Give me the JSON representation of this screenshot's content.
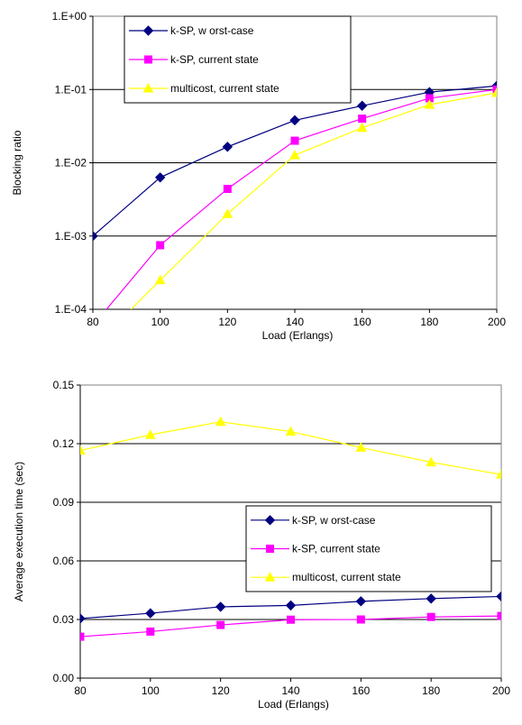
{
  "chart_data": [
    {
      "type": "line",
      "yscale": "log",
      "x": [
        80,
        100,
        120,
        140,
        160,
        180,
        200
      ],
      "xlim": [
        80,
        200
      ],
      "ylim": [
        0.0001,
        1
      ],
      "x_tick_values": [
        80,
        100,
        120,
        140,
        160,
        180,
        200
      ],
      "x_tick_labels": [
        "80",
        "100",
        "120",
        "140",
        "160",
        "180",
        "200"
      ],
      "y_tick_values": [
        0.0001,
        0.001,
        0.01,
        0.1,
        1
      ],
      "y_tick_labels": [
        "1.E-04",
        "1.E-03",
        "1.E-02",
        "1.E-01",
        "1.E+00"
      ],
      "xlabel": "Load (Erlangs)",
      "ylabel": "Blocking ratio",
      "grid": "horizontal",
      "legend": "top-left",
      "series": [
        {
          "name": "k-SP, w orst-case",
          "color": "#000080",
          "marker": "diamond",
          "values": [
            0.001,
            0.0063,
            0.0165,
            0.038,
            0.06,
            0.092,
            0.112
          ]
        },
        {
          "name": "k-SP, current state",
          "color": "#FF00FF",
          "marker": "square",
          "values": [
            6e-05,
            0.00075,
            0.0044,
            0.02,
            0.04,
            0.076,
            0.1
          ]
        },
        {
          "name": "multicost, current state",
          "color": "#FFFF00",
          "marker": "triangle",
          "values": [
            3e-05,
            0.00025,
            0.002,
            0.0127,
            0.03,
            0.062,
            0.09
          ]
        }
      ]
    },
    {
      "type": "line",
      "x": [
        80,
        100,
        120,
        140,
        160,
        180,
        200
      ],
      "xlim": [
        80,
        200
      ],
      "ylim": [
        0,
        0.15
      ],
      "x_tick_values": [
        80,
        100,
        120,
        140,
        160,
        180,
        200
      ],
      "x_tick_labels": [
        "80",
        "100",
        "120",
        "140",
        "160",
        "180",
        "200"
      ],
      "y_tick_values": [
        0,
        0.03,
        0.06,
        0.09,
        0.12,
        0.15
      ],
      "y_tick_labels": [
        "0.00",
        "0.03",
        "0.06",
        "0.09",
        "0.12",
        "0.15"
      ],
      "xlabel": "Load (Erlangs)",
      "ylabel": "Average execution time (sec)",
      "grid": "horizontal",
      "legend": "center-right",
      "series": [
        {
          "name": "k-SP, w orst-case",
          "color": "#000080",
          "marker": "diamond",
          "values": [
            0.0305,
            0.0332,
            0.0365,
            0.0372,
            0.0393,
            0.0407,
            0.0418
          ]
        },
        {
          "name": "k-SP, current state",
          "color": "#FF00FF",
          "marker": "square",
          "values": [
            0.0212,
            0.0238,
            0.0272,
            0.0299,
            0.03,
            0.0313,
            0.0318
          ]
        },
        {
          "name": "multicost, current state",
          "color": "#FFFF00",
          "marker": "triangle",
          "values": [
            0.1165,
            0.1245,
            0.1312,
            0.1262,
            0.118,
            0.1105,
            0.1042
          ]
        }
      ]
    }
  ]
}
